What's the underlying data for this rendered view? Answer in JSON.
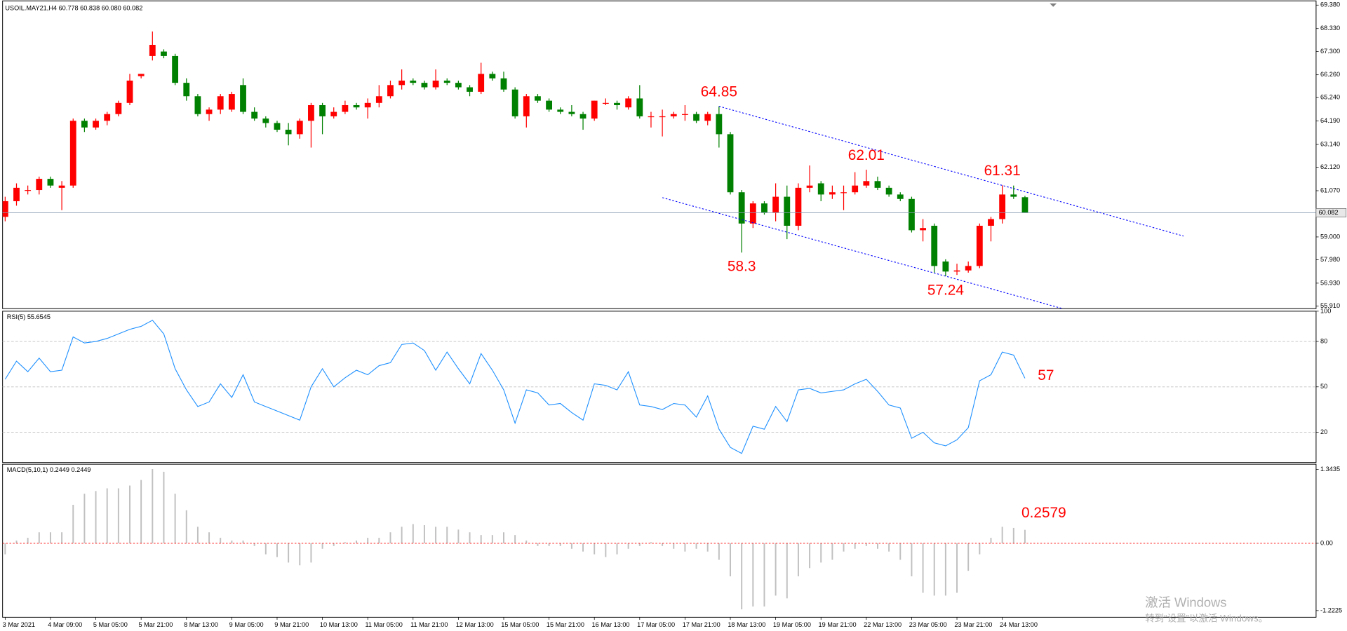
{
  "chart_data": [
    {
      "type": "candlestick",
      "title": "USOIL.MAY21,H4  60.778 60.838 60.080 60.082",
      "categories": [
        "3 Mar 2021",
        null,
        null,
        null,
        "4 Mar 09:00",
        null,
        null,
        null,
        "5 Mar 05:00",
        null,
        null,
        null,
        "5 Mar 21:00",
        null,
        null,
        null,
        "8 Mar 13:00",
        null,
        null,
        null,
        "9 Mar 05:00",
        null,
        null,
        null,
        "9 Mar 21:00",
        null,
        null,
        null,
        "10 Mar 13:00",
        null,
        null,
        null,
        "11 Mar 05:00",
        null,
        null,
        null,
        "11 Mar 21:00",
        null,
        null,
        null,
        "12 Mar 13:00",
        null,
        null,
        null,
        "15 Mar 05:00",
        null,
        null,
        null,
        "15 Mar 21:00",
        null,
        null,
        null,
        "16 Mar 13:00",
        null,
        null,
        null,
        "17 Mar 05:00",
        null,
        null,
        null,
        "17 Mar 21:00",
        null,
        null,
        null,
        "18 Mar 13:00",
        null,
        null,
        null,
        "19 Mar 05:00",
        null,
        null,
        null,
        "19 Mar 21:00",
        null,
        null,
        null,
        "22 Mar 13:00",
        null,
        null,
        null,
        "23 Mar 05:00",
        null,
        null,
        null,
        "23 Mar 21:00",
        null,
        null,
        null,
        "24 Mar 13:00",
        null,
        null
      ],
      "ohlc": [
        [
          59.9,
          60.8,
          59.7,
          60.6
        ],
        [
          60.6,
          61.4,
          60.4,
          61.2
        ],
        [
          61.1,
          61.3,
          60.9,
          61.1
        ],
        [
          61.1,
          61.7,
          60.9,
          61.6
        ],
        [
          61.6,
          61.7,
          61.2,
          61.3
        ],
        [
          61.2,
          61.5,
          60.2,
          61.3
        ],
        [
          61.3,
          64.3,
          61.2,
          64.2
        ],
        [
          64.2,
          64.3,
          63.7,
          63.9
        ],
        [
          63.9,
          64.3,
          63.8,
          64.2
        ],
        [
          64.2,
          64.6,
          64.0,
          64.5
        ],
        [
          64.5,
          65.1,
          64.4,
          65.0
        ],
        [
          65.0,
          66.3,
          64.9,
          66.0
        ],
        [
          66.2,
          66.3,
          66.1,
          66.3
        ],
        [
          67.1,
          68.2,
          66.9,
          67.6
        ],
        [
          67.3,
          67.4,
          67.0,
          67.1
        ],
        [
          67.1,
          67.2,
          65.8,
          65.9
        ],
        [
          65.9,
          66.1,
          65.1,
          65.3
        ],
        [
          65.3,
          65.4,
          64.4,
          64.5
        ],
        [
          64.5,
          64.8,
          64.2,
          64.7
        ],
        [
          64.7,
          65.4,
          64.5,
          65.3
        ],
        [
          64.7,
          65.5,
          64.6,
          65.4
        ],
        [
          65.8,
          66.1,
          64.5,
          64.6
        ],
        [
          64.6,
          64.8,
          64.2,
          64.3
        ],
        [
          64.3,
          64.4,
          63.9,
          64.1
        ],
        [
          64.1,
          64.2,
          63.7,
          63.8
        ],
        [
          63.8,
          64.1,
          63.1,
          63.6
        ],
        [
          63.6,
          64.3,
          63.4,
          64.2
        ],
        [
          64.2,
          65.0,
          63.0,
          64.9
        ],
        [
          64.9,
          65.0,
          63.6,
          64.4
        ],
        [
          64.4,
          64.8,
          64.3,
          64.6
        ],
        [
          64.6,
          65.1,
          64.5,
          64.9
        ],
        [
          64.9,
          65.0,
          64.7,
          64.8
        ],
        [
          64.8,
          65.2,
          64.3,
          65.0
        ],
        [
          65.0,
          65.8,
          64.8,
          65.3
        ],
        [
          65.3,
          66.0,
          65.2,
          65.8
        ],
        [
          65.8,
          66.5,
          65.6,
          66.0
        ],
        [
          66.0,
          66.1,
          65.8,
          65.9
        ],
        [
          65.9,
          66.0,
          65.6,
          65.7
        ],
        [
          65.7,
          66.5,
          65.6,
          66.0
        ],
        [
          66.0,
          66.1,
          65.8,
          65.9
        ],
        [
          65.9,
          66.0,
          65.6,
          65.7
        ],
        [
          65.7,
          65.8,
          65.3,
          65.5
        ],
        [
          65.5,
          66.8,
          65.4,
          66.3
        ],
        [
          66.3,
          66.4,
          66.0,
          66.1
        ],
        [
          66.1,
          66.4,
          65.5,
          65.6
        ],
        [
          65.6,
          65.7,
          64.3,
          64.4
        ],
        [
          64.4,
          65.4,
          63.9,
          65.3
        ],
        [
          65.3,
          65.4,
          65.0,
          65.1
        ],
        [
          65.1,
          65.2,
          64.6,
          64.7
        ],
        [
          64.7,
          64.8,
          64.5,
          64.6
        ],
        [
          64.6,
          64.9,
          64.4,
          64.5
        ],
        [
          64.5,
          64.6,
          63.8,
          64.3
        ],
        [
          64.3,
          65.1,
          64.2,
          65.1
        ],
        [
          65.0,
          65.2,
          64.9,
          65.0
        ],
        [
          65.0,
          65.1,
          64.7,
          64.9
        ],
        [
          64.8,
          65.3,
          64.7,
          65.2
        ],
        [
          65.2,
          65.8,
          64.3,
          64.4
        ],
        [
          64.4,
          64.6,
          63.9,
          64.4
        ],
        [
          64.4,
          64.7,
          63.5,
          64.4
        ],
        [
          64.4,
          64.6,
          64.3,
          64.5
        ],
        [
          64.5,
          64.9,
          64.2,
          64.5
        ],
        [
          64.5,
          64.6,
          64.1,
          64.2
        ],
        [
          64.2,
          64.6,
          64.0,
          64.5
        ],
        [
          64.5,
          64.85,
          63.0,
          63.6
        ],
        [
          63.6,
          63.7,
          60.9,
          61.0
        ],
        [
          61.0,
          61.1,
          58.3,
          59.6
        ],
        [
          59.6,
          60.6,
          59.4,
          60.5
        ],
        [
          60.5,
          60.6,
          60.0,
          60.1
        ],
        [
          60.1,
          61.4,
          59.7,
          60.8
        ],
        [
          60.8,
          61.3,
          58.9,
          59.5
        ],
        [
          59.5,
          61.4,
          59.3,
          61.2
        ],
        [
          61.2,
          62.2,
          61.0,
          61.3
        ],
        [
          61.4,
          61.5,
          60.6,
          60.9
        ],
        [
          60.9,
          61.3,
          60.7,
          61.0
        ],
        [
          61.0,
          61.3,
          60.2,
          61.0
        ],
        [
          61.0,
          61.9,
          60.9,
          61.3
        ],
        [
          61.3,
          62.01,
          61.2,
          61.5
        ],
        [
          61.5,
          61.7,
          61.1,
          61.2
        ],
        [
          61.2,
          61.3,
          60.8,
          60.9
        ],
        [
          60.9,
          61.0,
          60.6,
          60.7
        ],
        [
          60.7,
          60.8,
          59.2,
          59.3
        ],
        [
          59.3,
          59.8,
          58.8,
          59.4
        ],
        [
          59.5,
          59.6,
          57.4,
          57.7
        ],
        [
          57.9,
          58.0,
          57.24,
          57.45
        ],
        [
          57.45,
          57.8,
          57.3,
          57.5
        ],
        [
          57.5,
          57.9,
          57.4,
          57.7
        ],
        [
          57.7,
          59.6,
          57.6,
          59.5
        ],
        [
          59.5,
          59.9,
          58.8,
          59.8
        ],
        [
          59.8,
          61.31,
          59.6,
          60.9
        ],
        [
          60.9,
          61.3,
          60.7,
          60.8
        ],
        [
          60.778,
          60.838,
          60.08,
          60.082
        ]
      ],
      "up_color": "#ff0000",
      "down_color": "#008000",
      "ylim": [
        55.79,
        69.57
      ],
      "yticks": [
        {
          "value": 69.38,
          "label": "69.380"
        },
        {
          "value": 68.33,
          "label": "68.330"
        },
        {
          "value": 67.3,
          "label": "67.300"
        },
        {
          "value": 66.26,
          "label": "66.260"
        },
        {
          "value": 65.24,
          "label": "65.240"
        },
        {
          "value": 64.19,
          "label": "64.190"
        },
        {
          "value": 63.14,
          "label": "63.140"
        },
        {
          "value": 62.12,
          "label": "62.120"
        },
        {
          "value": 61.07,
          "label": "61.070"
        },
        {
          "value": 59.0,
          "label": "59.000"
        },
        {
          "value": 57.98,
          "label": "57.980"
        },
        {
          "value": 56.93,
          "label": "56.930"
        },
        {
          "value": 55.91,
          "label": "55.910"
        }
      ],
      "grid": false,
      "price_line": 60.082,
      "annotations": [
        64.85,
        58.3,
        62.01,
        57.24,
        61.31
      ],
      "trendlines": [
        [
          [
            63,
            64.85
          ],
          [
            104,
            59.04
          ]
        ],
        [
          [
            58,
            60.76
          ],
          [
            93.4,
            55.78
          ]
        ]
      ],
      "trendline_color": "#0000ff"
    },
    {
      "type": "line",
      "title": "RSI(5) 55.6545",
      "values": [
        55,
        67,
        60,
        69,
        60,
        61,
        83,
        79,
        80,
        82,
        85,
        88,
        90,
        94,
        85,
        62,
        48,
        37,
        40,
        52,
        43,
        58,
        40,
        37,
        34,
        31,
        28,
        50,
        62,
        50,
        56,
        61,
        58,
        64,
        66,
        78,
        79,
        74,
        61,
        73,
        62,
        52,
        72,
        61,
        48,
        26,
        48,
        46,
        38,
        39,
        33,
        28,
        52,
        51,
        48,
        60,
        38,
        37,
        35,
        39,
        38,
        30,
        44,
        22,
        10,
        6,
        24,
        22,
        37,
        27,
        48,
        49,
        46,
        47,
        48,
        52,
        55,
        47,
        38,
        36,
        16,
        20,
        13,
        11,
        15,
        23,
        54,
        58,
        73,
        71,
        55.6545
      ],
      "color": "#1e90ff",
      "ylim": [
        0,
        100
      ],
      "yticks": [
        100,
        80,
        50,
        20
      ],
      "levels": [
        80,
        50,
        20
      ],
      "level_color": "#c0c0c0",
      "annotations": [
        57
      ]
    },
    {
      "type": "bar",
      "title": "MACD(5,10,1) 0.2449 0.2449",
      "values": [
        -0.2,
        0.05,
        0.1,
        0.2,
        0.2,
        0.2,
        0.7,
        0.9,
        0.95,
        1.0,
        1.0,
        1.05,
        1.15,
        1.35,
        1.3,
        0.9,
        0.6,
        0.3,
        0.2,
        0.1,
        0.05,
        0.05,
        -0.05,
        -0.2,
        -0.25,
        -0.35,
        -0.4,
        -0.35,
        -0.1,
        -0.05,
        0.02,
        0.05,
        0.1,
        0.1,
        0.2,
        0.3,
        0.35,
        0.33,
        0.3,
        0.3,
        0.25,
        0.2,
        0.15,
        0.15,
        0.2,
        0.15,
        0.05,
        -0.05,
        -0.05,
        -0.05,
        -0.1,
        -0.15,
        -0.2,
        -0.25,
        -0.2,
        -0.1,
        -0.05,
        0.02,
        -0.05,
        -0.1,
        -0.15,
        -0.1,
        -0.15,
        -0.3,
        -0.6,
        -1.2,
        -1.15,
        -1.15,
        -0.95,
        -1.0,
        -0.6,
        -0.45,
        -0.35,
        -0.3,
        -0.15,
        -0.1,
        -0.05,
        -0.1,
        -0.15,
        -0.3,
        -0.6,
        -0.9,
        -0.95,
        -0.95,
        -0.9,
        -0.5,
        -0.2,
        0.1,
        0.3,
        0.28,
        0.2449
      ],
      "color": "#c0c0c0",
      "ylim": [
        -1.344,
        1.4375
      ],
      "yticks": [
        1.3435,
        {
          "value": 0,
          "label": "0.00"
        },
        -1.2225
      ],
      "levels": [
        0
      ],
      "level_color": "#ff0000",
      "annotations": [
        0.2579
      ]
    }
  ],
  "watermark": {
    "line1": "激活 Windows",
    "line2": "转到“设置”以激活 Windows。"
  }
}
